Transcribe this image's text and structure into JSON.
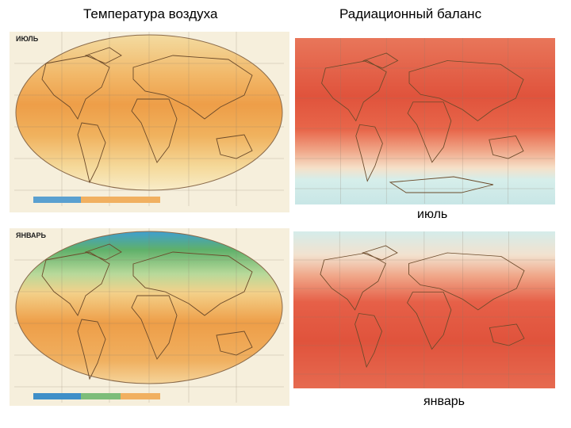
{
  "header": {
    "left_title": "Температура воздуха",
    "right_title": "Радиационный баланс"
  },
  "maps": [
    {
      "label": "ИЮЛЬ"
    },
    {
      "label": "ЯНВАРЬ"
    }
  ],
  "captions": {
    "july": "июль",
    "january": "январь"
  }
}
